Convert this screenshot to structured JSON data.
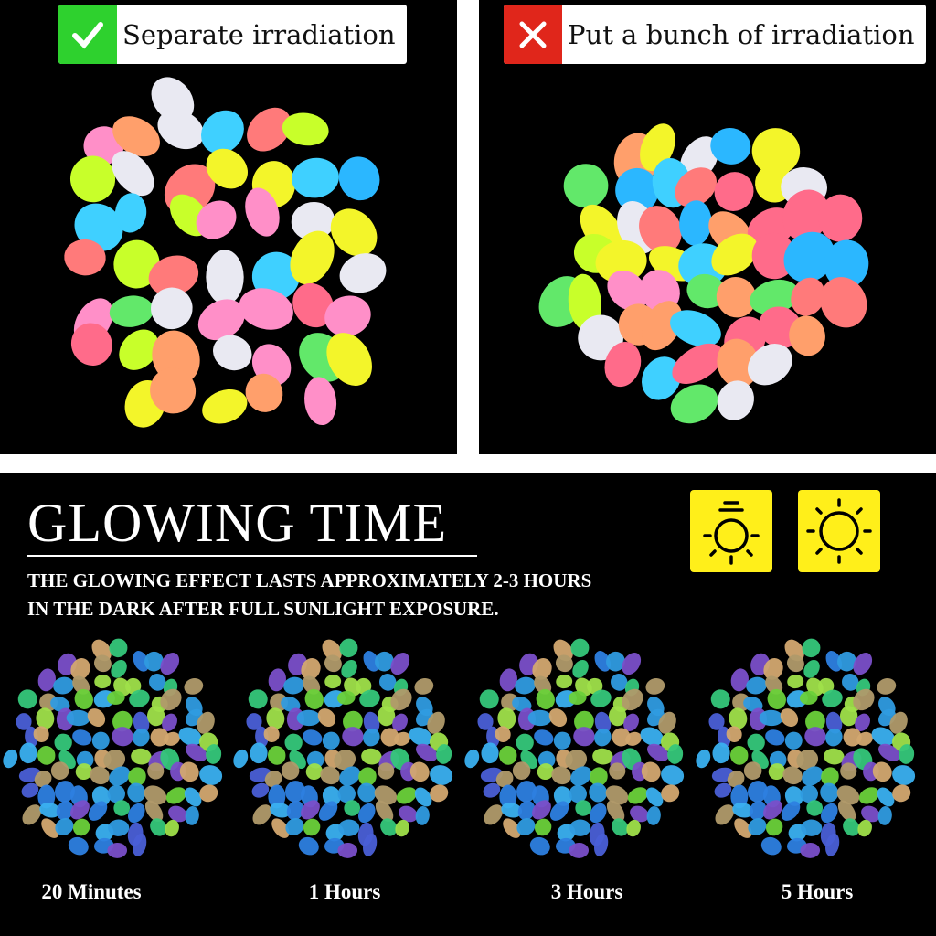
{
  "top_left": {
    "label": "Separate irradiation",
    "mark_icon": "check-icon",
    "mark_color": "#2ed12e"
  },
  "top_right": {
    "label": "Put a bunch of irradiation",
    "mark_icon": "x-icon",
    "mark_color": "#e0261b"
  },
  "glowing": {
    "title": "GLOWING TIME",
    "line1": "THE GLOWING EFFECT LASTS APPROXIMATELY 2-3 HOURS",
    "line2": "IN THE DARK AFTER FULL SUNLIGHT EXPOSURE.",
    "icons": [
      "dim-sun-icon",
      "bright-sun-icon"
    ],
    "icon_color": "#ffef1a"
  },
  "stages": [
    {
      "label": "20 Minutes"
    },
    {
      "label": "1 Hours"
    },
    {
      "label": "3 Hours"
    },
    {
      "label": "5 Hours"
    }
  ],
  "palettes": {
    "day": [
      "#ff6b8a",
      "#ff8fc8",
      "#2bb7ff",
      "#f3f52a",
      "#c8ff2a",
      "#62e86a",
      "#ff7a7a",
      "#e9e9f2",
      "#3fd0ff",
      "#ff9f6b"
    ],
    "glow": [
      "#2f9be0",
      "#3ab0f0",
      "#6ad13a",
      "#b09a6a",
      "#d3a870",
      "#4a5fd6",
      "#7a4fc9",
      "#35c77a",
      "#2d7fe0",
      "#9fe04a"
    ]
  }
}
